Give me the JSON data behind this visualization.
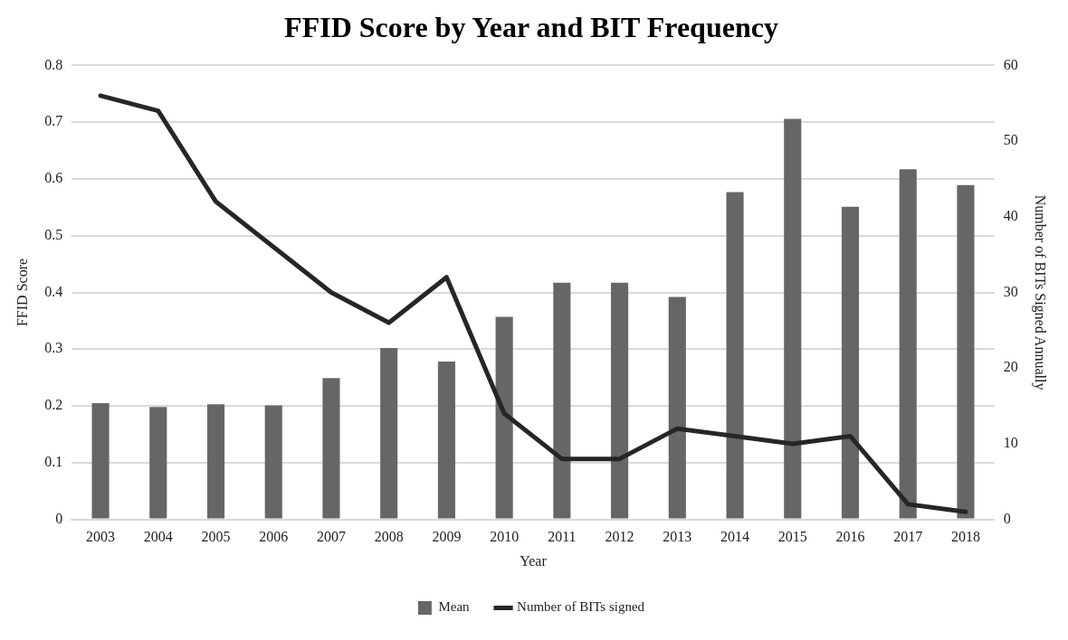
{
  "chart_data": {
    "type": "bar",
    "title": "FFID Score by Year and BIT Frequency",
    "xlabel": "Year",
    "ylabel": "FFID Score",
    "y2label": "Number of BITs Signed Annually",
    "categories": [
      "2003",
      "2004",
      "2005",
      "2006",
      "2007",
      "2008",
      "2009",
      "2010",
      "2011",
      "2012",
      "2013",
      "2014",
      "2015",
      "2016",
      "2017",
      "2018"
    ],
    "series": [
      {
        "name": "Mean",
        "color": "#666666",
        "values": [
          0.205,
          0.198,
          0.203,
          0.201,
          0.249,
          0.302,
          0.278,
          0.357,
          0.417,
          0.417,
          0.392,
          0.577,
          0.706,
          0.551,
          0.617,
          0.589
        ]
      },
      {
        "name": "Number of BITs signed",
        "type": "line",
        "axis": "y2",
        "color": "#262626",
        "values": [
          56,
          54,
          42,
          36,
          30,
          26,
          32,
          14,
          8,
          8,
          12,
          11,
          10,
          11,
          2,
          1
        ]
      }
    ],
    "ylim": [
      0,
      0.8
    ],
    "yticks": [
      0,
      0.1,
      0.2,
      0.3,
      0.4,
      0.5,
      0.6,
      0.7,
      0.8
    ],
    "y2lim": [
      0,
      60
    ],
    "y2ticks": [
      0,
      10,
      20,
      30,
      40,
      50,
      60
    ],
    "grid": "y",
    "legend": "bottom",
    "marker": "none",
    "line_style": "solid"
  }
}
